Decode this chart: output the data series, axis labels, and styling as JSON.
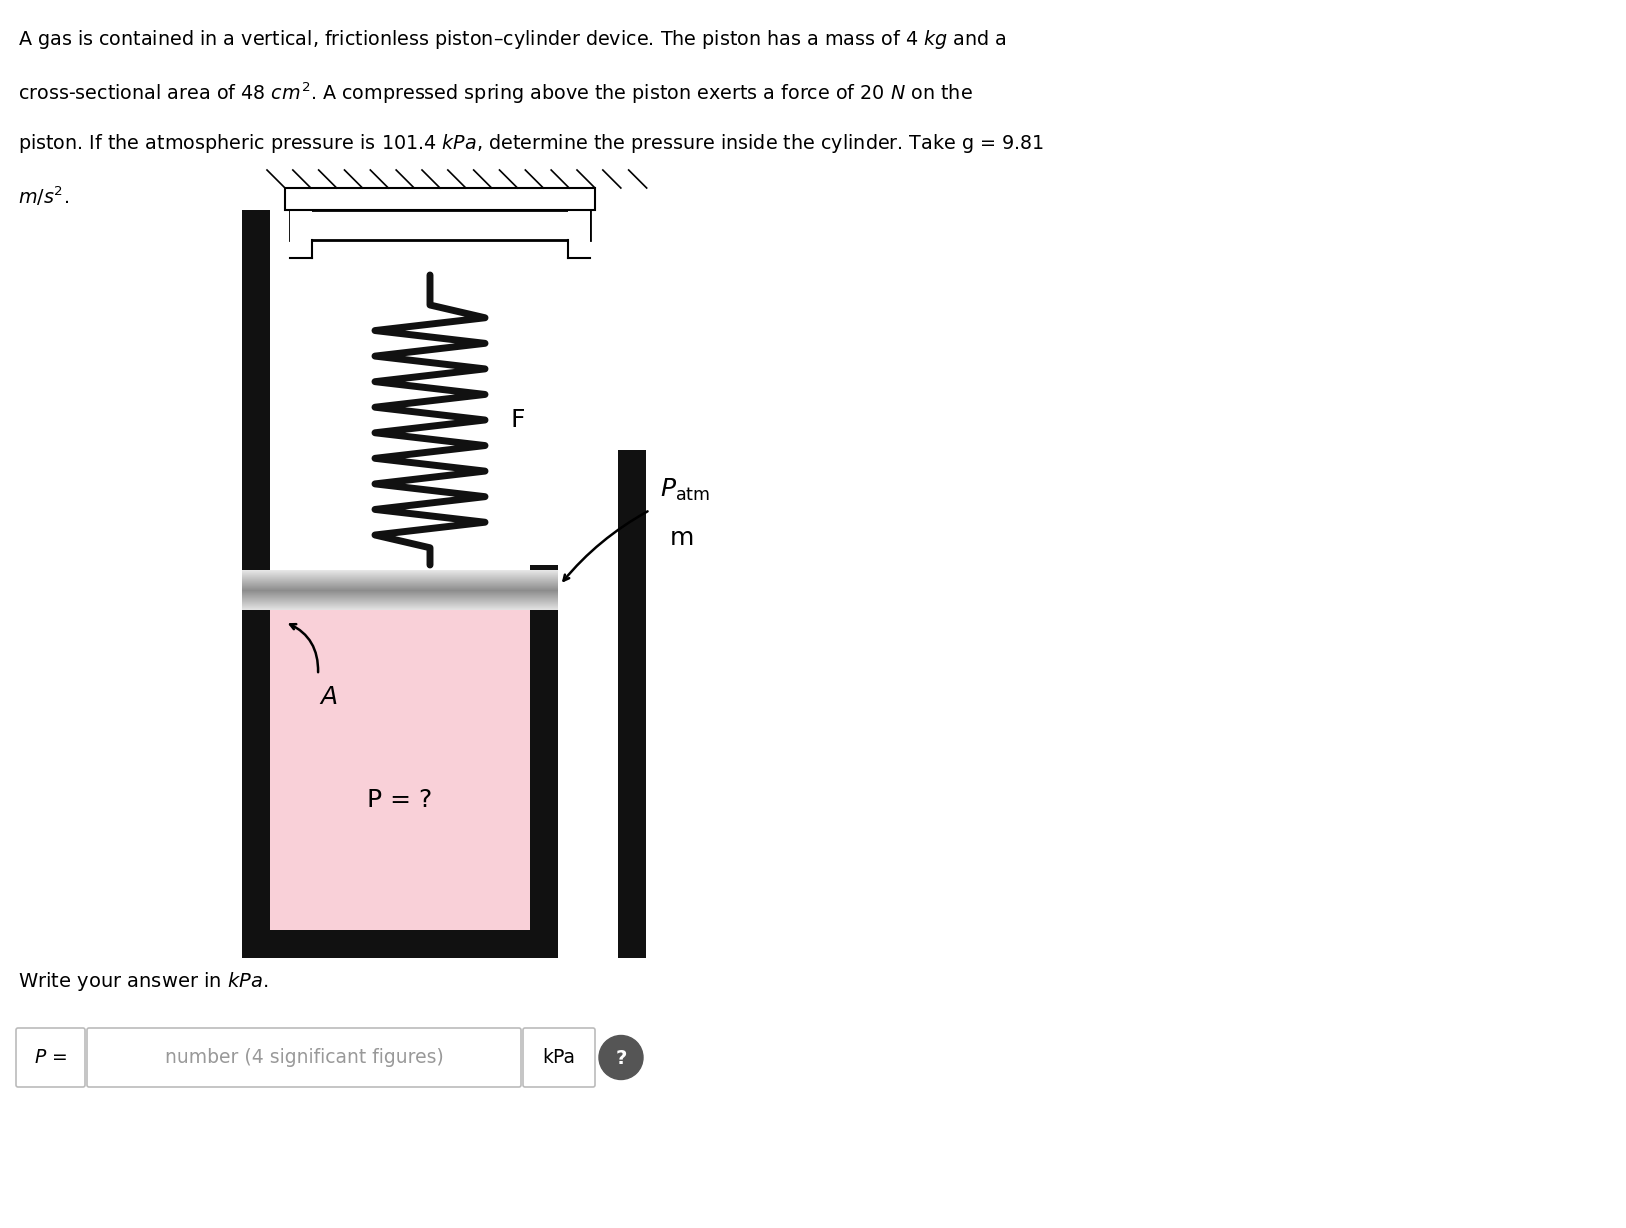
{
  "bg_color": "#ffffff",
  "cylinder_fill": "#f9d0d8",
  "wall_color": "#111111",
  "spring_color": "#111111",
  "label_F": "F",
  "label_Patm": "$P_{\\mathrm{atm}}$",
  "label_m": "m",
  "label_A": "A",
  "label_P": "P = ?",
  "answer_label": "Write your answer in $kPa$.",
  "P_eq": "$P$ =",
  "placeholder": "number (4 significant figures)",
  "unit_label": "kPa",
  "top_lines": [
    "A gas is contained in a vertical, frictionless piston–cylinder device. The piston has a mass of 4 $kg$ and a",
    "cross-sectional area of 48 $cm^2$. A compressed spring above the piston exerts a force of 20 $N$ on the",
    "piston. If the atmospheric pressure is 101.4 $kPa$, determine the pressure inside the cylinder. Take g = 9.81",
    "$m/s^2$."
  ]
}
